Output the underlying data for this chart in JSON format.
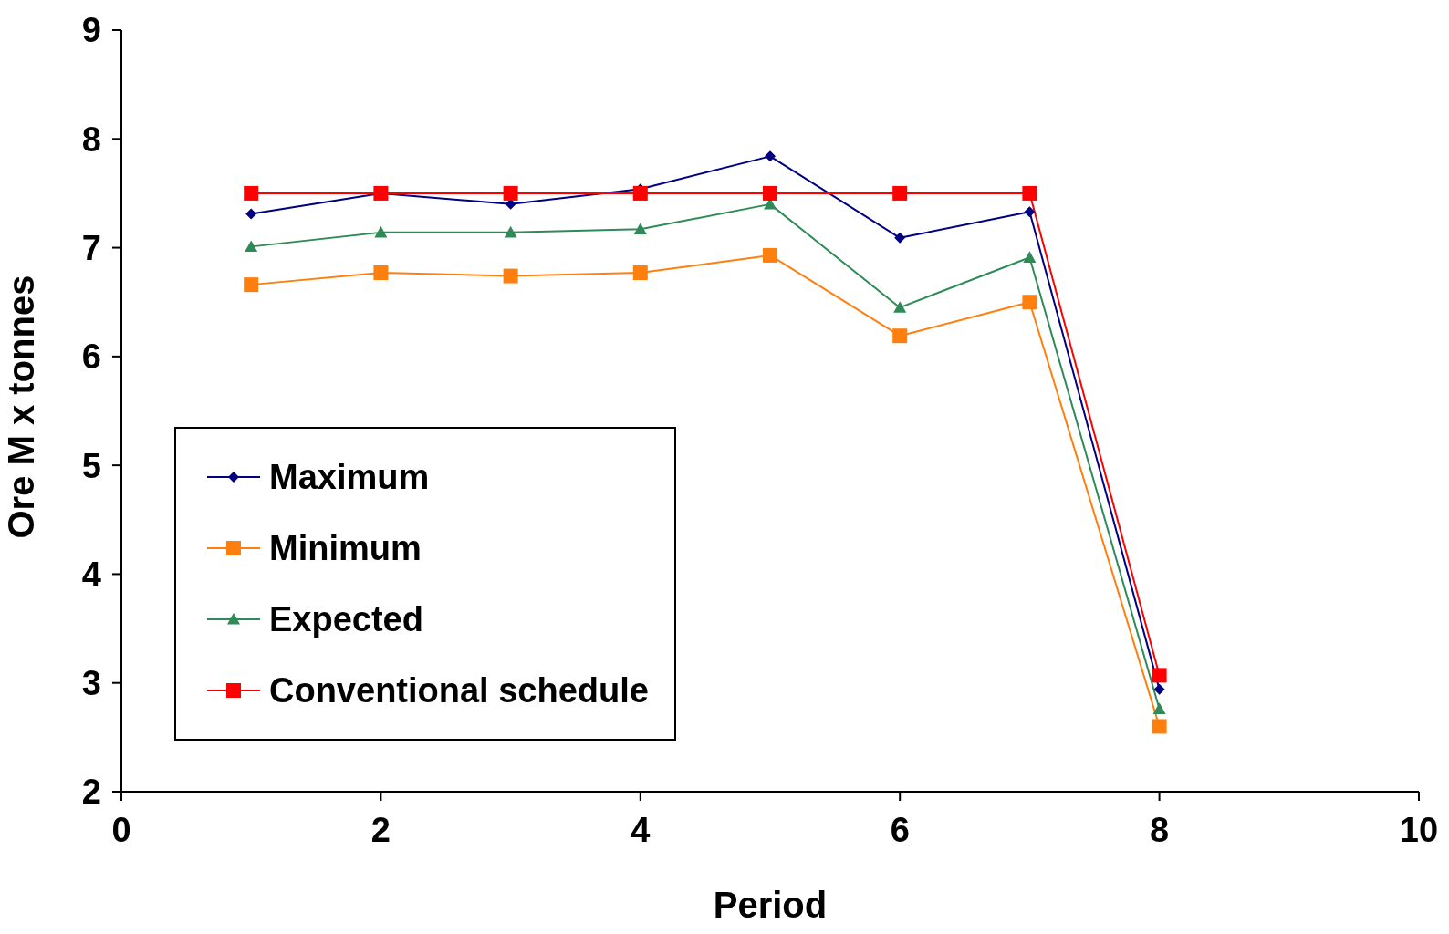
{
  "chart_data": {
    "type": "line",
    "xlabel": "Period",
    "ylabel": "Ore M x tonnes",
    "x": [
      1,
      2,
      3,
      4,
      5,
      6,
      7,
      8
    ],
    "series": [
      {
        "name": "Maximum",
        "color": "#000080",
        "marker": "diamond",
        "values": [
          7.31,
          7.5,
          7.4,
          7.54,
          7.84,
          7.09,
          7.33,
          2.94
        ]
      },
      {
        "name": "Minimum",
        "color": "#ff7f0e",
        "marker": "square",
        "values": [
          6.66,
          6.77,
          6.74,
          6.77,
          6.93,
          6.19,
          6.5,
          2.6
        ]
      },
      {
        "name": "Expected",
        "color": "#2e8b57",
        "marker": "triangle",
        "values": [
          7.01,
          7.14,
          7.14,
          7.17,
          7.4,
          6.45,
          6.91,
          2.76
        ]
      },
      {
        "name": "Conventional schedule",
        "color": "#ff0000",
        "marker": "square",
        "values": [
          7.5,
          7.5,
          7.5,
          7.5,
          7.5,
          7.5,
          7.5,
          3.07
        ]
      }
    ],
    "xlim": [
      0,
      10
    ],
    "xticks": [
      0,
      2,
      4,
      6,
      8,
      10
    ],
    "ylim": [
      2,
      9
    ],
    "yticks": [
      2,
      3,
      4,
      5,
      6,
      7,
      8,
      9
    ],
    "grid": false,
    "legend": "bottom left",
    "line_style": "solid"
  }
}
